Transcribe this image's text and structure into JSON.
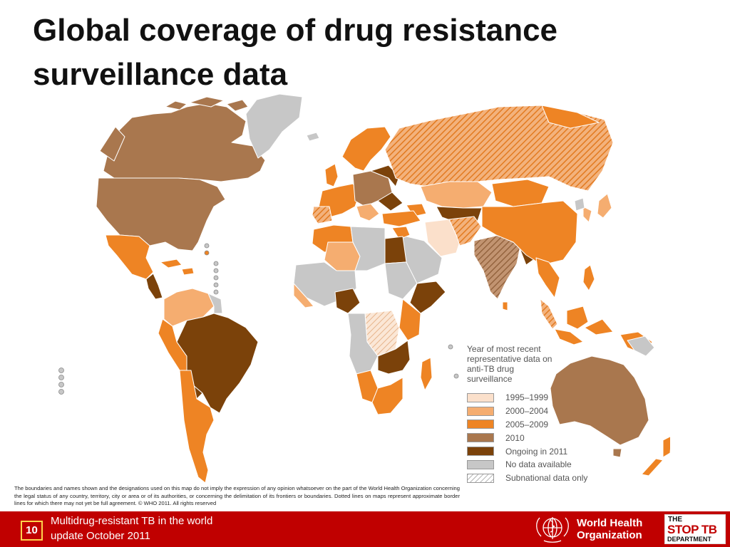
{
  "title": "Global coverage of drug resistance surveillance data",
  "map": {
    "colors": {
      "1995-1999": "#fbe0cb",
      "2000-2004": "#f5ad70",
      "2005-2009": "#ee8424",
      "2010": "#a9774e",
      "ongoing_2011": "#7b420a",
      "no_data": "#c7c7c7",
      "subnational_hatch": "#e8945a",
      "ocean": "#ffffff",
      "border": "#ffffff"
    },
    "legend": {
      "title": "Year of most recent representative data on anti-TB drug surveillance",
      "items": [
        {
          "label": "1995–1999",
          "color": "#fbe0cb"
        },
        {
          "label": "2000–2004",
          "color": "#f5ad70"
        },
        {
          "label": "2005–2009",
          "color": "#ee8424"
        },
        {
          "label": "2010",
          "color": "#a9774e"
        },
        {
          "label": "Ongoing in 2011",
          "color": "#7b420a"
        },
        {
          "label": "No data available",
          "color": "#c7c7c7"
        },
        {
          "label": "Subnational data only",
          "color": "hatch"
        }
      ]
    }
  },
  "disclaimer": "The boundaries and names shown and the designations used on this map do not imply the expression of any opinion whatsoever on the part of the World Health Organization concerning the legal status of any country, territory, city or area or of its authorities, or concerning the delimitation of its frontiers or boundaries.  Dotted lines on maps represent approximate border lines for which there may not yet be full agreement.   © WHO 2011. All rights reserved",
  "footer": {
    "slide_number": "10",
    "text_line1": "Multidrug-resistant TB in the world",
    "text_line2": "update October 2011",
    "accent_color": "#c00000",
    "who_line1": "World Health",
    "who_line2": "Organization",
    "stoptb_line1": "THE",
    "stoptb_line2": "STOP TB",
    "stoptb_line3": "DEPARTMENT"
  }
}
